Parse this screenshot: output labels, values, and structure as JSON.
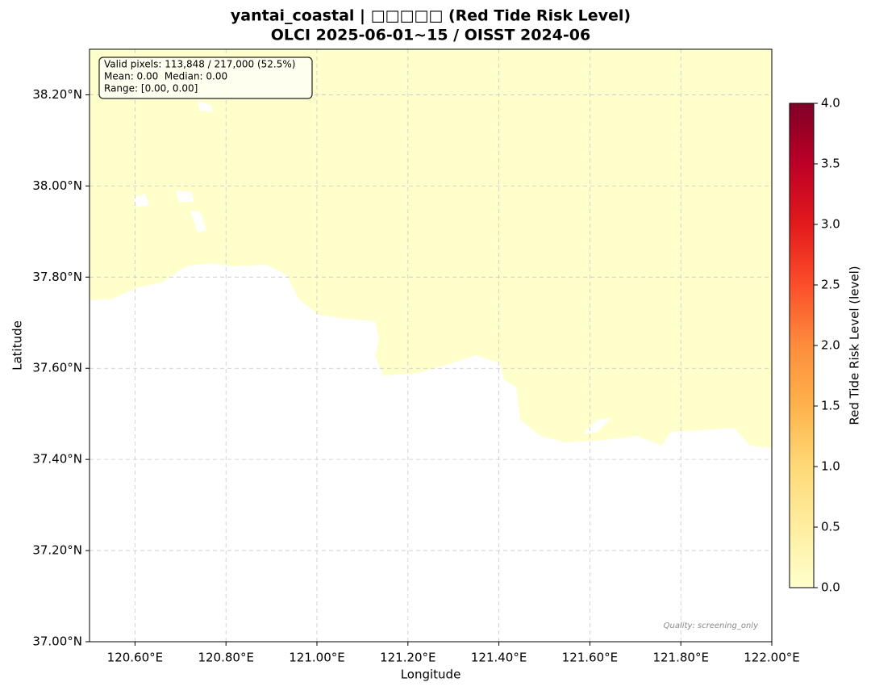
{
  "chart_data": {
    "type": "map",
    "title": "yantai_coastal | □□□□□ (Red Tide Risk Level)",
    "subtitle": "OLCI 2025-06-01~15 / OISST 2024-06",
    "xlabel": "Longitude",
    "ylabel": "Latitude",
    "xlim": [
      120.5,
      122.0
    ],
    "xticks": [
      {
        "value": 120.6,
        "label": "120.60°E"
      },
      {
        "value": 120.8,
        "label": "120.80°E"
      },
      {
        "value": 121.0,
        "label": "121.00°E"
      },
      {
        "value": 121.2,
        "label": "121.20°E"
      },
      {
        "value": 121.4,
        "label": "121.40°E"
      },
      {
        "value": 121.6,
        "label": "121.60°E"
      },
      {
        "value": 121.8,
        "label": "121.80°E"
      },
      {
        "value": 122.0,
        "label": "122.00°E"
      }
    ],
    "ylim": [
      37.0,
      38.3
    ],
    "yticks": [
      {
        "value": 37.0,
        "label": "37.00°N"
      },
      {
        "value": 37.2,
        "label": "37.20°N"
      },
      {
        "value": 37.4,
        "label": "37.40°N"
      },
      {
        "value": 37.6,
        "label": "37.60°N"
      },
      {
        "value": 37.8,
        "label": "37.80°N"
      },
      {
        "value": 38.0,
        "label": "38.00°N"
      },
      {
        "value": 38.2,
        "label": "38.20°N"
      }
    ],
    "grid": true,
    "stats_box": [
      "Valid pixels: 113,848 / 217,000 (52.5%)",
      "Mean: 0.00  Median: 0.00",
      "Range: [0.00, 0.00]"
    ],
    "note": "Quality: screening_only",
    "colorbar": {
      "label": "Red Tide Risk Level (level)",
      "clim": [
        0.0,
        4.0
      ],
      "ticks": [
        {
          "value": 0.0,
          "label": "0.0"
        },
        0.5,
        {
          "value": 1.0,
          "label": "1.0"
        },
        1.5,
        {
          "value": 2.0,
          "label": "2.0"
        },
        2.5,
        {
          "value": 3.0,
          "label": "3.0"
        },
        3.5,
        {
          "value": 4.0,
          "label": "4.0"
        }
      ],
      "colormap": [
        "#ffffcc",
        "#ffeda0",
        "#fed976",
        "#feb24c",
        "#fd8d3c",
        "#fc4e2a",
        "#e31a1c",
        "#bd0026",
        "#800026"
      ]
    }
  }
}
